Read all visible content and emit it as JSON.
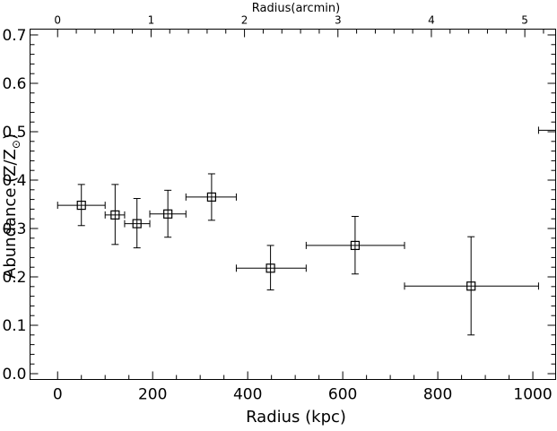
{
  "chart_data": {
    "type": "scatter",
    "xlabel": "Radius (kpc)",
    "ylabel": "Abundance (Z/Z",
    "ylabel_sub": "⊙",
    "ylabel_close": ")",
    "x2label": "Radius(arcmin)",
    "xlim": [
      -58,
      1048
    ],
    "ylim": [
      -0.012,
      0.712
    ],
    "x2lim": [
      -0.295,
      5.33
    ],
    "x_ticks": [
      0,
      200,
      400,
      600,
      800,
      1000
    ],
    "x_tick_labels": [
      "0",
      "200",
      "400",
      "600",
      "800",
      "1000"
    ],
    "y_ticks": [
      0.0,
      0.1,
      0.2,
      0.3,
      0.4,
      0.5,
      0.6,
      0.7
    ],
    "y_tick_labels": [
      "0.0",
      "0.1",
      "0.2",
      "0.3",
      "0.4",
      "0.5",
      "0.6",
      "0.7"
    ],
    "x2_ticks": [
      0,
      1,
      2,
      3,
      4,
      5
    ],
    "x2_tick_labels": [
      "0",
      "1",
      "2",
      "3",
      "4",
      "5"
    ],
    "series": [
      {
        "points": [
          {
            "x": 50,
            "xlo": 0,
            "xhi": 100,
            "y": 0.348,
            "ylo": 0.306,
            "yhi": 0.391
          },
          {
            "x": 121,
            "xlo": 100,
            "xhi": 141,
            "y": 0.328,
            "ylo": 0.267,
            "yhi": 0.391
          },
          {
            "x": 167,
            "xlo": 141,
            "xhi": 194,
            "y": 0.31,
            "ylo": 0.26,
            "yhi": 0.362
          },
          {
            "x": 232,
            "xlo": 194,
            "xhi": 270,
            "y": 0.33,
            "ylo": 0.282,
            "yhi": 0.379
          },
          {
            "x": 324,
            "xlo": 270,
            "xhi": 376,
            "y": 0.365,
            "ylo": 0.317,
            "yhi": 0.413
          },
          {
            "x": 448,
            "xlo": 376,
            "xhi": 523,
            "y": 0.218,
            "ylo": 0.173,
            "yhi": 0.265
          },
          {
            "x": 626,
            "xlo": 523,
            "xhi": 730,
            "y": 0.265,
            "ylo": 0.206,
            "yhi": 0.325
          },
          {
            "x": 870,
            "xlo": 730,
            "xhi": 1012,
            "y": 0.181,
            "ylo": 0.08,
            "yhi": 0.283
          }
        ]
      }
    ],
    "extra_segment": {
      "x0": 1012,
      "x1": 1048,
      "y": 0.503
    }
  }
}
